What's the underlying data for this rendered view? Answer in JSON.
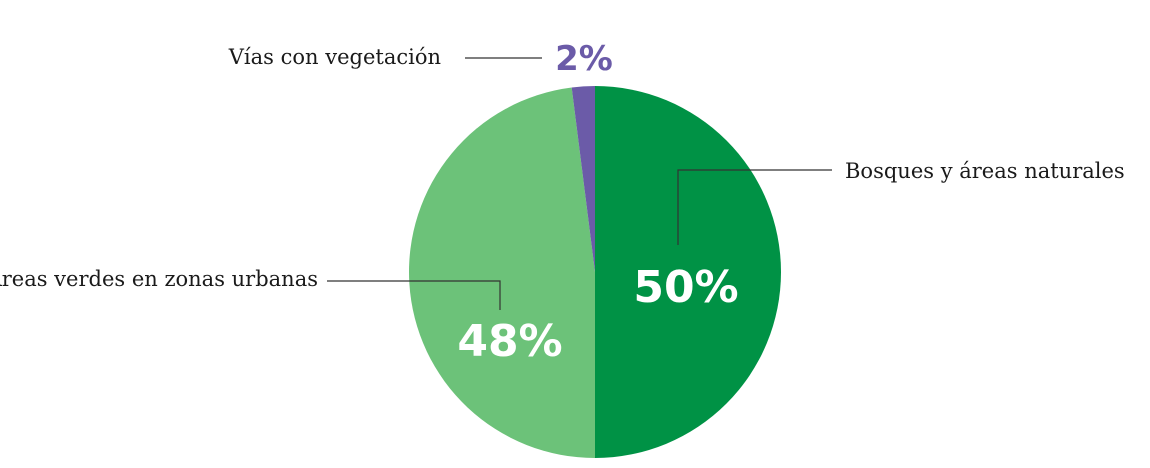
{
  "chart_data": {
    "type": "pie",
    "slices": [
      {
        "label": "Bosques y áreas naturales",
        "value": 50,
        "value_label": "50%",
        "color": "#009245"
      },
      {
        "label": "Áreas verdes en zonas urbanas",
        "value": 48,
        "value_label": "48%",
        "color": "#6cc279"
      },
      {
        "label": "Vías con vegetación",
        "value": 2,
        "value_label": "2%",
        "color": "#6b5ba8"
      }
    ],
    "start_angle": "12 o'clock",
    "direction": "clockwise",
    "legend": "none (labels with leader lines)"
  }
}
